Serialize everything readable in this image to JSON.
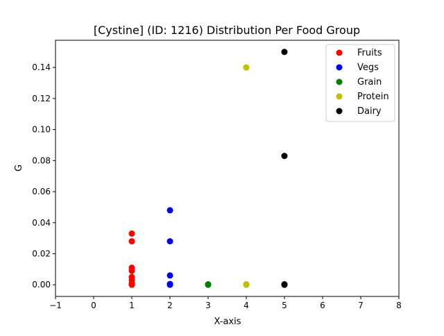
{
  "chart_data": {
    "type": "scatter",
    "title": "[Cystine] (ID: 1216) Distribution Per Food Group",
    "xlabel": "X-axis",
    "ylabel": "G",
    "xlim": [
      -1,
      8
    ],
    "ylim": [
      -0.0075,
      0.1575
    ],
    "xticks": [
      -1,
      0,
      1,
      2,
      3,
      4,
      5,
      6,
      7,
      8
    ],
    "yticks": [
      0.0,
      0.02,
      0.04,
      0.06,
      0.08,
      0.1,
      0.12,
      0.14
    ],
    "ytick_labels": [
      "0.00",
      "0.02",
      "0.04",
      "0.06",
      "0.08",
      "0.10",
      "0.12",
      "0.14"
    ],
    "grid": false,
    "legend_position": "top-right",
    "series": [
      {
        "name": "Fruits",
        "color": "#ff0000",
        "x": [
          1,
          1,
          1,
          1,
          1,
          1,
          1,
          1,
          1,
          1
        ],
        "y": [
          0.033,
          0.028,
          0.011,
          0.009,
          0.005,
          0.003,
          0.001,
          0.0005,
          0.0002,
          0.0
        ]
      },
      {
        "name": "Vegs",
        "color": "#0000ff",
        "x": [
          2,
          2,
          2,
          2,
          2
        ],
        "y": [
          0.048,
          0.028,
          0.006,
          0.0005,
          0.0
        ]
      },
      {
        "name": "Grain",
        "color": "#008000",
        "x": [
          3,
          3,
          3
        ],
        "y": [
          0.0,
          0.0003,
          0.0001
        ]
      },
      {
        "name": "Protein",
        "color": "#bfbf00",
        "x": [
          4,
          4,
          4
        ],
        "y": [
          0.14,
          0.0003,
          0.0
        ]
      },
      {
        "name": "Dairy",
        "color": "#000000",
        "x": [
          5,
          5,
          5,
          5
        ],
        "y": [
          0.15,
          0.083,
          0.0003,
          0.0
        ]
      }
    ]
  }
}
